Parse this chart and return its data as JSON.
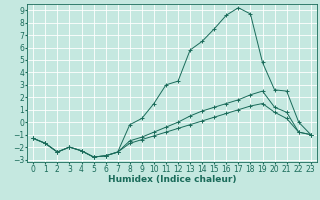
{
  "xlabel": "Humidex (Indice chaleur)",
  "xlim": [
    -0.5,
    23.5
  ],
  "ylim": [
    -3.2,
    9.5
  ],
  "xticks": [
    0,
    1,
    2,
    3,
    4,
    5,
    6,
    7,
    8,
    9,
    10,
    11,
    12,
    13,
    14,
    15,
    16,
    17,
    18,
    19,
    20,
    21,
    22,
    23
  ],
  "yticks": [
    -3,
    -2,
    -1,
    0,
    1,
    2,
    3,
    4,
    5,
    6,
    7,
    8,
    9
  ],
  "background_color": "#c5e8e0",
  "grid_color": "#ffffff",
  "line_color": "#1a6b5a",
  "lines": [
    {
      "x": [
        0,
        1,
        2,
        3,
        4,
        5,
        6,
        7,
        8,
        9,
        10,
        11,
        12,
        13,
        14,
        15,
        16,
        17,
        18,
        19,
        20,
        21,
        22,
        23
      ],
      "y": [
        -1.3,
        -1.7,
        -2.4,
        -2.0,
        -2.3,
        -2.8,
        -2.7,
        -2.4,
        -0.2,
        0.3,
        1.5,
        3.0,
        3.3,
        5.8,
        6.5,
        7.5,
        8.6,
        9.2,
        8.7,
        4.8,
        2.6,
        2.5,
        0.0,
        -1.0
      ]
    },
    {
      "x": [
        0,
        1,
        2,
        3,
        4,
        5,
        6,
        7,
        8,
        9,
        10,
        11,
        12,
        13,
        14,
        15,
        16,
        17,
        18,
        19,
        20,
        21,
        22,
        23
      ],
      "y": [
        -1.3,
        -1.7,
        -2.4,
        -2.0,
        -2.3,
        -2.8,
        -2.7,
        -2.4,
        -1.5,
        -1.2,
        -0.8,
        -0.4,
        0.0,
        0.5,
        0.9,
        1.2,
        1.5,
        1.8,
        2.2,
        2.5,
        1.2,
        0.8,
        -0.8,
        -1.0
      ]
    },
    {
      "x": [
        0,
        1,
        2,
        3,
        4,
        5,
        6,
        7,
        8,
        9,
        10,
        11,
        12,
        13,
        14,
        15,
        16,
        17,
        18,
        19,
        20,
        21,
        22,
        23
      ],
      "y": [
        -1.3,
        -1.7,
        -2.4,
        -2.0,
        -2.3,
        -2.8,
        -2.7,
        -2.4,
        -1.7,
        -1.4,
        -1.1,
        -0.8,
        -0.5,
        -0.2,
        0.1,
        0.4,
        0.7,
        1.0,
        1.3,
        1.5,
        0.8,
        0.3,
        -0.8,
        -1.0
      ]
    }
  ],
  "tick_fontsize": 5.5,
  "xlabel_fontsize": 6.5
}
